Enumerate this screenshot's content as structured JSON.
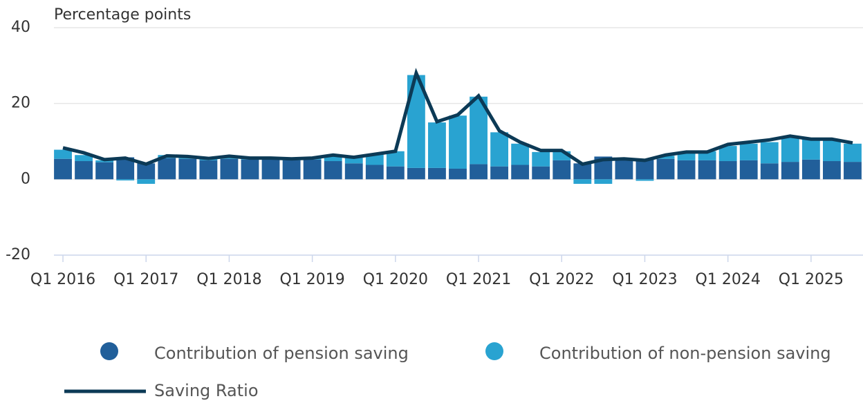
{
  "chart_data": {
    "type": "bar",
    "stacked": true,
    "y_axis_label": "Percentage points",
    "categories": [
      "Q1 2016",
      null,
      null,
      null,
      "Q1 2017",
      null,
      null,
      null,
      "Q1 2018",
      null,
      null,
      null,
      "Q1 2019",
      null,
      null,
      null,
      "Q1 2020",
      null,
      null,
      null,
      "Q1 2021",
      null,
      null,
      null,
      "Q1 2022",
      null,
      null,
      null,
      "Q1 2023",
      null,
      null,
      null,
      "Q1 2024",
      null,
      null,
      null,
      "Q1 2025",
      null,
      null
    ],
    "series": [
      {
        "name": "Contribution of pension saving",
        "color": "#215f9a",
        "type": "bar",
        "values": [
          5.4,
          4.8,
          4.5,
          5.8,
          4.2,
          5.6,
          5.4,
          5.0,
          5.4,
          5.2,
          5.6,
          5.0,
          5.2,
          4.8,
          4.2,
          3.8,
          3.4,
          3.0,
          3.0,
          2.8,
          4.0,
          3.4,
          3.8,
          3.4,
          5.0,
          4.2,
          6.0,
          5.4,
          5.2,
          5.4,
          5.0,
          5.0,
          4.8,
          5.0,
          4.2,
          4.6,
          5.2,
          4.8,
          4.6
        ]
      },
      {
        "name": "Contribution of non-pension saving",
        "color": "#29a3d1",
        "type": "bar",
        "values": [
          2.4,
          1.6,
          0.5,
          -0.3,
          -1.2,
          0.8,
          0.8,
          0.8,
          0.8,
          0.4,
          0,
          0.4,
          0.4,
          1.6,
          1.6,
          2.8,
          4.0,
          24.5,
          12.0,
          14.0,
          17.8,
          9.0,
          5.6,
          3.8,
          2.4,
          -1.2,
          -1.2,
          0,
          -0.4,
          0.8,
          2.0,
          2.4,
          4.0,
          4.4,
          5.6,
          6.4,
          5.6,
          5.6,
          4.8
        ]
      },
      {
        "name": "Saving Ratio",
        "color": "#0c3a56",
        "type": "line",
        "values": [
          8.3,
          7.0,
          5.2,
          5.6,
          4.0,
          6.2,
          6.0,
          5.5,
          6.1,
          5.6,
          5.6,
          5.4,
          5.6,
          6.4,
          5.8,
          6.6,
          7.4,
          28.0,
          15.2,
          17.0,
          22.0,
          12.8,
          9.8,
          7.6,
          7.6,
          4.0,
          5.2,
          5.4,
          5.0,
          6.4,
          7.2,
          7.2,
          9.2,
          9.8,
          10.4,
          11.4,
          10.6,
          10.6,
          9.6
        ]
      }
    ],
    "ylim": [
      -20,
      40
    ],
    "yticks": [
      -20,
      0,
      20,
      40
    ],
    "grid": true,
    "legend": "bottom"
  }
}
